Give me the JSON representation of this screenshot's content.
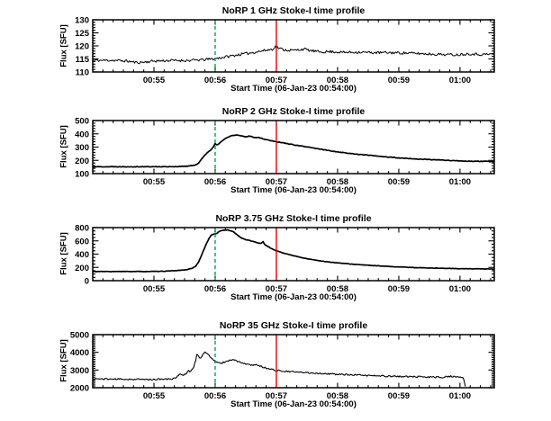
{
  "page": {
    "background": "#ffffff"
  },
  "chart_data": [
    {
      "type": "line",
      "title": "NoRP 1 GHz Stoke-I time profile",
      "xlabel": "Start Time (06-Jan-23 00:54:00)",
      "ylabel": "Flux [SFU]",
      "ylim": [
        110,
        130
      ],
      "yticks": [
        110,
        115,
        120,
        125,
        130
      ],
      "y_minor_step": 1,
      "xlim_minutes": [
        0,
        6.56
      ],
      "xticks_minutes": [
        1,
        2,
        3,
        4,
        5,
        6
      ],
      "xtick_labels": [
        "00:55",
        "00:56",
        "00:57",
        "00:58",
        "00:59",
        "01:00"
      ],
      "x_minor_step_minutes": 0.166667,
      "grid": false,
      "markers": [
        {
          "name": "event-line-green",
          "t_minutes": 2,
          "color": "#00a551",
          "style": "dashed"
        },
        {
          "name": "event-line-red",
          "t_minutes": 3,
          "color": "#ee0000",
          "style": "solid"
        }
      ],
      "series": [
        {
          "name": "Stokes I flux",
          "color": "#000000",
          "stroke_width": 1.0,
          "noise_sfu": 0.5,
          "seed": 11,
          "points": [
            [
              0.0,
              114.4
            ],
            [
              0.3,
              114.5
            ],
            [
              0.55,
              114.2
            ],
            [
              0.72,
              113.6
            ],
            [
              0.85,
              113.8
            ],
            [
              1.0,
              114.2
            ],
            [
              1.3,
              114.4
            ],
            [
              1.6,
              114.4
            ],
            [
              1.8,
              114.7
            ],
            [
              1.95,
              115.0
            ],
            [
              2.05,
              115.3
            ],
            [
              2.2,
              115.9
            ],
            [
              2.4,
              116.7
            ],
            [
              2.6,
              117.4
            ],
            [
              2.8,
              118.2
            ],
            [
              2.93,
              118.7
            ],
            [
              2.99,
              119.8
            ],
            [
              3.05,
              119.0
            ],
            [
              3.15,
              118.4
            ],
            [
              3.3,
              118.3
            ],
            [
              3.45,
              118.8
            ],
            [
              3.55,
              118.2
            ],
            [
              3.7,
              117.7
            ],
            [
              3.9,
              117.8
            ],
            [
              4.1,
              117.5
            ],
            [
              4.35,
              117.6
            ],
            [
              4.6,
              117.4
            ],
            [
              4.9,
              117.4
            ],
            [
              5.2,
              117.2
            ],
            [
              5.5,
              116.9
            ],
            [
              5.75,
              116.7
            ],
            [
              5.95,
              116.6
            ],
            [
              6.15,
              117.0
            ],
            [
              6.35,
              116.7
            ],
            [
              6.56,
              116.9
            ]
          ]
        }
      ]
    },
    {
      "type": "line",
      "title": "NoRP 2 GHz Stoke-I time profile",
      "xlabel": "Start Time (06-Jan-23 00:54:00)",
      "ylabel": "Flux [SFU]",
      "ylim": [
        100,
        500
      ],
      "yticks": [
        100,
        200,
        300,
        400,
        500
      ],
      "y_minor_step": 20,
      "xlim_minutes": [
        0,
        6.56
      ],
      "xticks_minutes": [
        1,
        2,
        3,
        4,
        5,
        6
      ],
      "xtick_labels": [
        "00:55",
        "00:56",
        "00:57",
        "00:58",
        "00:59",
        "01:00"
      ],
      "x_minor_step_minutes": 0.166667,
      "grid": false,
      "markers": [
        {
          "name": "event-line-green",
          "t_minutes": 2,
          "color": "#00a551",
          "style": "dashed"
        },
        {
          "name": "event-line-red",
          "t_minutes": 3,
          "color": "#ee0000",
          "style": "solid"
        }
      ],
      "series": [
        {
          "name": "Stokes I flux",
          "color": "#000000",
          "stroke_width": 1.7,
          "noise_sfu": 2.2,
          "seed": 22,
          "points": [
            [
              0.0,
              152
            ],
            [
              1.0,
              152
            ],
            [
              1.4,
              153
            ],
            [
              1.55,
              156
            ],
            [
              1.65,
              162
            ],
            [
              1.72,
              175
            ],
            [
              1.78,
              210
            ],
            [
              1.83,
              240
            ],
            [
              1.88,
              262
            ],
            [
              1.93,
              278
            ],
            [
              1.97,
              300
            ],
            [
              2.0,
              325
            ],
            [
              2.03,
              315
            ],
            [
              2.07,
              330
            ],
            [
              2.12,
              348
            ],
            [
              2.18,
              368
            ],
            [
              2.25,
              383
            ],
            [
              2.3,
              388
            ],
            [
              2.35,
              390
            ],
            [
              2.4,
              386
            ],
            [
              2.45,
              383
            ],
            [
              2.5,
              377
            ],
            [
              2.55,
              383
            ],
            [
              2.6,
              378
            ],
            [
              2.65,
              373
            ],
            [
              2.7,
              373
            ],
            [
              2.75,
              368
            ],
            [
              2.8,
              360
            ],
            [
              2.9,
              350
            ],
            [
              3.0,
              341
            ],
            [
              3.1,
              333
            ],
            [
              3.25,
              320
            ],
            [
              3.4,
              308
            ],
            [
              3.6,
              293
            ],
            [
              3.8,
              278
            ],
            [
              4.0,
              264
            ],
            [
              4.2,
              252
            ],
            [
              4.4,
              243
            ],
            [
              4.6,
              235
            ],
            [
              4.8,
              226
            ],
            [
              5.0,
              218
            ],
            [
              5.2,
              212
            ],
            [
              5.4,
              208
            ],
            [
              5.6,
              204
            ],
            [
              5.8,
              200
            ],
            [
              6.0,
              196
            ],
            [
              6.2,
              193
            ],
            [
              6.4,
              192
            ],
            [
              6.56,
              191
            ]
          ]
        }
      ]
    },
    {
      "type": "line",
      "title": "NoRP 3.75 GHz Stoke-I time profile",
      "xlabel": "Start Time (06-Jan-23 00:54:00)",
      "ylabel": "Flux [SFU]",
      "ylim": [
        0,
        800
      ],
      "yticks": [
        0,
        200,
        400,
        600,
        800
      ],
      "y_minor_step": 50,
      "xlim_minutes": [
        0,
        6.56
      ],
      "xticks_minutes": [
        1,
        2,
        3,
        4,
        5,
        6
      ],
      "xtick_labels": [
        "00:55",
        "00:56",
        "00:57",
        "00:58",
        "00:59",
        "01:00"
      ],
      "x_minor_step_minutes": 0.166667,
      "grid": false,
      "markers": [
        {
          "name": "event-line-green",
          "t_minutes": 2,
          "color": "#00a551",
          "style": "dashed"
        },
        {
          "name": "event-line-red",
          "t_minutes": 3,
          "color": "#ee0000",
          "style": "solid"
        }
      ],
      "series": [
        {
          "name": "Stokes I flux",
          "color": "#000000",
          "stroke_width": 1.7,
          "noise_sfu": 3.0,
          "seed": 33,
          "points": [
            [
              0.0,
              138
            ],
            [
              0.9,
              138
            ],
            [
              1.1,
              140
            ],
            [
              1.3,
              148
            ],
            [
              1.45,
              158
            ],
            [
              1.55,
              168
            ],
            [
              1.62,
              185
            ],
            [
              1.68,
              215
            ],
            [
              1.73,
              280
            ],
            [
              1.78,
              390
            ],
            [
              1.82,
              480
            ],
            [
              1.86,
              560
            ],
            [
              1.9,
              640
            ],
            [
              1.94,
              690
            ],
            [
              1.98,
              705
            ],
            [
              2.0,
              700
            ],
            [
              2.03,
              712
            ],
            [
              2.07,
              745
            ],
            [
              2.12,
              758
            ],
            [
              2.18,
              765
            ],
            [
              2.22,
              760
            ],
            [
              2.26,
              752
            ],
            [
              2.3,
              735
            ],
            [
              2.35,
              700
            ],
            [
              2.4,
              660
            ],
            [
              2.45,
              635
            ],
            [
              2.5,
              618
            ],
            [
              2.55,
              610
            ],
            [
              2.6,
              595
            ],
            [
              2.65,
              585
            ],
            [
              2.7,
              568
            ],
            [
              2.75,
              560
            ],
            [
              2.78,
              592
            ],
            [
              2.81,
              545
            ],
            [
              2.85,
              520
            ],
            [
              2.9,
              495
            ],
            [
              2.95,
              470
            ],
            [
              3.0,
              452
            ],
            [
              3.1,
              420
            ],
            [
              3.2,
              395
            ],
            [
              3.3,
              372
            ],
            [
              3.45,
              340
            ],
            [
              3.6,
              315
            ],
            [
              3.8,
              288
            ],
            [
              4.0,
              268
            ],
            [
              4.25,
              248
            ],
            [
              4.5,
              232
            ],
            [
              4.75,
              218
            ],
            [
              5.0,
              207
            ],
            [
              5.25,
              198
            ],
            [
              5.5,
              191
            ],
            [
              5.75,
              186
            ],
            [
              6.0,
              181
            ],
            [
              6.25,
              178
            ],
            [
              6.56,
              175
            ]
          ]
        }
      ]
    },
    {
      "type": "line",
      "title": "NoRP 35 GHz Stoke-I time profile",
      "xlabel": "Start Time (06-Jan-23 00:54:00)",
      "ylabel": "Flux [SFU]",
      "ylim": [
        2000,
        5000
      ],
      "yticks": [
        2000,
        3000,
        4000,
        5000
      ],
      "y_minor_step": 100,
      "xlim_minutes": [
        0,
        6.56
      ],
      "xticks_minutes": [
        1,
        2,
        3,
        4,
        5,
        6
      ],
      "xtick_labels": [
        "00:55",
        "00:56",
        "00:57",
        "00:58",
        "00:59",
        "01:00"
      ],
      "x_minor_step_minutes": 0.166667,
      "grid": false,
      "markers": [
        {
          "name": "event-line-green",
          "t_minutes": 2,
          "color": "#00a551",
          "style": "dashed"
        },
        {
          "name": "event-line-red",
          "t_minutes": 3,
          "color": "#ee0000",
          "style": "solid"
        }
      ],
      "series": [
        {
          "name": "Stokes I flux",
          "color": "#000000",
          "stroke_width": 1.1,
          "noise_sfu": 42,
          "seed": 44,
          "points": [
            [
              0.0,
              2500
            ],
            [
              0.5,
              2480
            ],
            [
              0.9,
              2465
            ],
            [
              1.2,
              2480
            ],
            [
              1.3,
              2500
            ],
            [
              1.38,
              2620
            ],
            [
              1.42,
              2800
            ],
            [
              1.46,
              2680
            ],
            [
              1.52,
              2780
            ],
            [
              1.56,
              2950
            ],
            [
              1.6,
              2920
            ],
            [
              1.64,
              3100
            ],
            [
              1.68,
              3500
            ],
            [
              1.7,
              3870
            ],
            [
              1.73,
              3800
            ],
            [
              1.76,
              3650
            ],
            [
              1.8,
              3900
            ],
            [
              1.83,
              4050
            ],
            [
              1.87,
              3900
            ],
            [
              1.92,
              3750
            ],
            [
              1.97,
              3550
            ],
            [
              2.0,
              3480
            ],
            [
              2.05,
              3400
            ],
            [
              2.1,
              3380
            ],
            [
              2.15,
              3450
            ],
            [
              2.2,
              3520
            ],
            [
              2.25,
              3560
            ],
            [
              2.3,
              3580
            ],
            [
              2.35,
              3520
            ],
            [
              2.4,
              3450
            ],
            [
              2.45,
              3380
            ],
            [
              2.5,
              3330
            ],
            [
              2.55,
              3300
            ],
            [
              2.6,
              3280
            ],
            [
              2.65,
              3310
            ],
            [
              2.7,
              3260
            ],
            [
              2.8,
              3150
            ],
            [
              2.9,
              3050
            ],
            [
              3.0,
              2980
            ],
            [
              3.15,
              2920
            ],
            [
              3.3,
              2890
            ],
            [
              3.5,
              2850
            ],
            [
              3.75,
              2800
            ],
            [
              4.0,
              2760
            ],
            [
              4.25,
              2720
            ],
            [
              4.5,
              2690
            ],
            [
              4.75,
              2660
            ],
            [
              5.0,
              2640
            ],
            [
              5.25,
              2620
            ],
            [
              5.5,
              2600
            ],
            [
              5.7,
              2590
            ],
            [
              5.85,
              2645
            ],
            [
              5.95,
              2605
            ],
            [
              6.0,
              2590
            ],
            [
              6.05,
              2580
            ],
            [
              6.09,
              2080
            ]
          ]
        }
      ]
    }
  ]
}
